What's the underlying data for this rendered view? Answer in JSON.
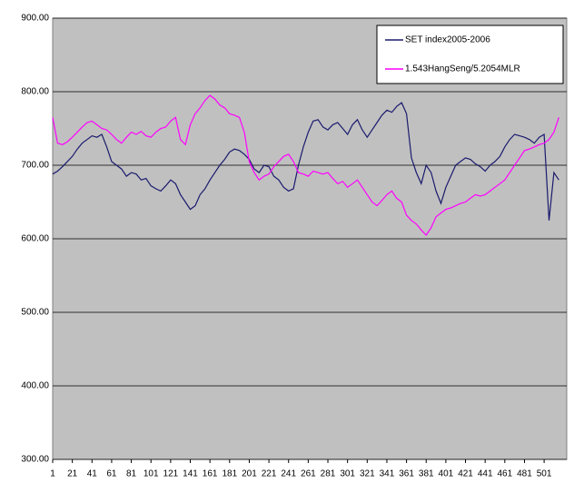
{
  "chart_data": {
    "type": "line",
    "x": [
      1,
      6,
      11,
      16,
      21,
      26,
      31,
      36,
      41,
      46,
      51,
      56,
      61,
      66,
      71,
      76,
      81,
      86,
      91,
      96,
      101,
      106,
      111,
      116,
      121,
      126,
      131,
      136,
      141,
      146,
      151,
      156,
      161,
      166,
      171,
      176,
      181,
      186,
      191,
      196,
      201,
      206,
      211,
      216,
      221,
      226,
      231,
      236,
      241,
      246,
      251,
      256,
      261,
      266,
      271,
      276,
      281,
      286,
      291,
      296,
      301,
      306,
      311,
      316,
      321,
      326,
      331,
      336,
      341,
      346,
      351,
      356,
      361,
      366,
      371,
      376,
      381,
      386,
      391,
      396,
      401,
      406,
      411,
      416,
      421,
      426,
      431,
      436,
      441,
      446,
      451,
      456,
      461,
      466,
      471,
      476,
      481,
      486,
      491,
      496,
      501,
      506,
      511,
      516
    ],
    "series": [
      {
        "name": "SET index2005-2006",
        "color": "#1a1a6e",
        "values": [
          688,
          692,
          698,
          705,
          712,
          722,
          730,
          735,
          740,
          738,
          742,
          725,
          705,
          700,
          695,
          685,
          690,
          688,
          680,
          682,
          672,
          668,
          665,
          672,
          680,
          675,
          660,
          650,
          640,
          645,
          660,
          668,
          680,
          690,
          700,
          708,
          718,
          722,
          720,
          715,
          708,
          695,
          690,
          700,
          698,
          685,
          680,
          670,
          665,
          668,
          700,
          725,
          745,
          760,
          762,
          752,
          748,
          755,
          758,
          750,
          742,
          755,
          762,
          748,
          738,
          748,
          758,
          768,
          775,
          772,
          780,
          785,
          770,
          710,
          690,
          675,
          700,
          690,
          665,
          648,
          670,
          685,
          700,
          705,
          710,
          708,
          702,
          698,
          692,
          700,
          705,
          712,
          725,
          735,
          742,
          740,
          738,
          735,
          730,
          738,
          742,
          625,
          690,
          680
        ]
      },
      {
        "name": "1.543HangSeng/5.2054MLR",
        "color": "#ff00ff",
        "values": [
          765,
          730,
          728,
          732,
          738,
          745,
          752,
          758,
          760,
          755,
          750,
          748,
          742,
          735,
          730,
          738,
          745,
          742,
          746,
          740,
          738,
          745,
          750,
          752,
          760,
          765,
          735,
          728,
          755,
          770,
          778,
          788,
          795,
          790,
          782,
          778,
          770,
          768,
          765,
          745,
          705,
          690,
          680,
          685,
          688,
          698,
          705,
          712,
          715,
          705,
          690,
          688,
          685,
          692,
          690,
          688,
          690,
          682,
          675,
          678,
          670,
          675,
          680,
          670,
          660,
          650,
          645,
          652,
          660,
          665,
          655,
          650,
          632,
          625,
          620,
          612,
          605,
          615,
          630,
          635,
          640,
          642,
          645,
          648,
          650,
          655,
          660,
          658,
          660,
          665,
          670,
          675,
          680,
          690,
          700,
          710,
          720,
          722,
          725,
          728,
          730,
          735,
          745,
          765
        ]
      }
    ],
    "xlim": [
      1,
      524
    ],
    "xticks": [
      1,
      21,
      41,
      61,
      81,
      101,
      121,
      141,
      161,
      181,
      201,
      221,
      241,
      261,
      281,
      301,
      321,
      341,
      361,
      381,
      401,
      421,
      441,
      461,
      481,
      501
    ],
    "ylim": [
      300,
      900
    ],
    "yticks": [
      {
        "value": 300,
        "label": "300.00"
      },
      {
        "value": 400,
        "label": "400.00"
      },
      {
        "value": 500,
        "label": "500.00"
      },
      {
        "value": 600,
        "label": "600.00"
      },
      {
        "value": 700,
        "label": "700.00"
      },
      {
        "value": 800,
        "label": "800.00"
      },
      {
        "value": 900,
        "label": "900.00"
      }
    ],
    "grid": true,
    "legend": "top-right"
  }
}
